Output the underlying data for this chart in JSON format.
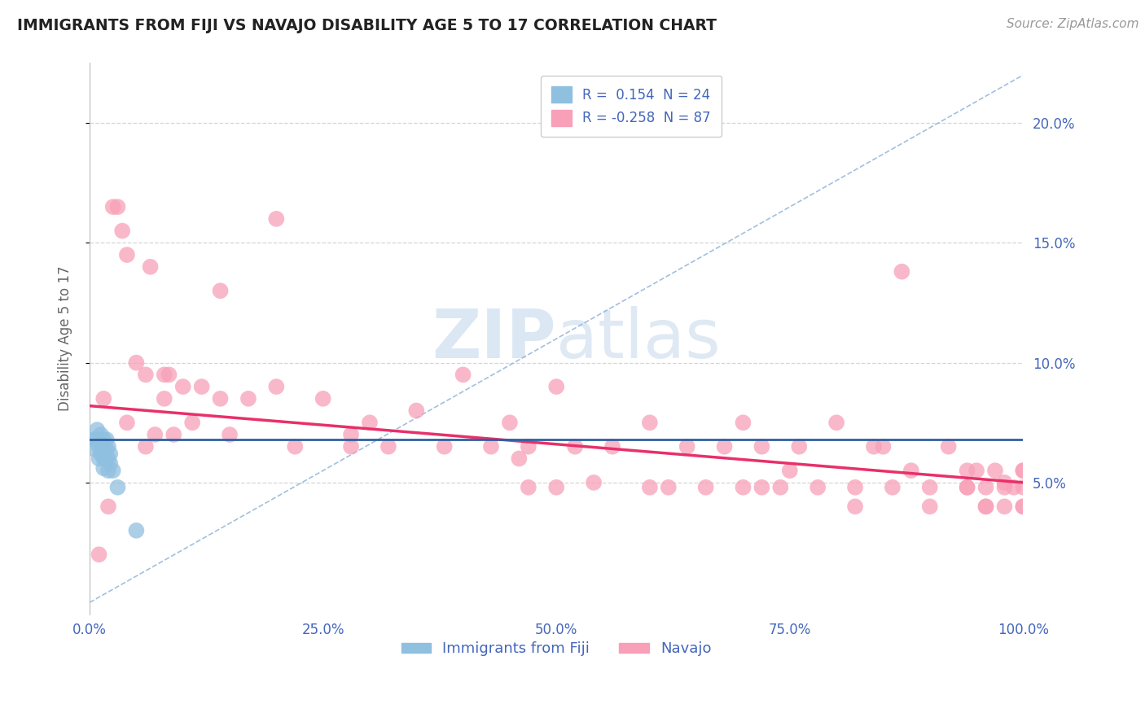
{
  "title": "IMMIGRANTS FROM FIJI VS NAVAJO DISABILITY AGE 5 TO 17 CORRELATION CHART",
  "source": "Source: ZipAtlas.com",
  "ylabel": "Disability Age 5 to 17",
  "xlim": [
    0.0,
    1.0
  ],
  "ylim": [
    -0.005,
    0.225
  ],
  "yticks": [
    0.05,
    0.1,
    0.15,
    0.2
  ],
  "ytick_labels": [
    "5.0%",
    "10.0%",
    "15.0%",
    "20.0%"
  ],
  "xticks": [
    0.0,
    0.25,
    0.5,
    0.75,
    1.0
  ],
  "xtick_labels": [
    "0.0%",
    "25.0%",
    "50.0%",
    "75.0%",
    "100.0%"
  ],
  "fiji_R": 0.154,
  "fiji_N": 24,
  "navajo_R": -0.258,
  "navajo_N": 87,
  "fiji_scatter_color": "#90c0e0",
  "navajo_scatter_color": "#f8a0b8",
  "fiji_trend_color": "#3060a0",
  "navajo_trend_color": "#e8306a",
  "diag_line_color": "#8ab0d8",
  "background_color": "#ffffff",
  "grid_color": "#cccccc",
  "title_color": "#222222",
  "axis_label_color": "#666666",
  "tick_label_color": "#4466bb",
  "navajo_trend_start_y": 0.082,
  "navajo_trend_end_y": 0.05,
  "fiji_trend_start_y": 0.068,
  "fiji_trend_end_y": 0.068,
  "fiji_points_x": [
    0.005,
    0.005,
    0.008,
    0.008,
    0.01,
    0.01,
    0.012,
    0.012,
    0.012,
    0.015,
    0.015,
    0.015,
    0.015,
    0.018,
    0.018,
    0.018,
    0.02,
    0.02,
    0.02,
    0.022,
    0.022,
    0.025,
    0.03,
    0.05
  ],
  "fiji_points_y": [
    0.068,
    0.064,
    0.072,
    0.068,
    0.065,
    0.06,
    0.07,
    0.066,
    0.062,
    0.068,
    0.064,
    0.06,
    0.056,
    0.068,
    0.064,
    0.06,
    0.065,
    0.06,
    0.055,
    0.062,
    0.058,
    0.055,
    0.048,
    0.03
  ],
  "navajo_points_x": [
    0.01,
    0.015,
    0.02,
    0.025,
    0.03,
    0.035,
    0.04,
    0.05,
    0.06,
    0.065,
    0.07,
    0.08,
    0.085,
    0.09,
    0.1,
    0.11,
    0.12,
    0.14,
    0.15,
    0.17,
    0.2,
    0.22,
    0.25,
    0.28,
    0.3,
    0.32,
    0.35,
    0.38,
    0.4,
    0.43,
    0.45,
    0.47,
    0.5,
    0.5,
    0.52,
    0.54,
    0.56,
    0.6,
    0.62,
    0.64,
    0.66,
    0.68,
    0.7,
    0.7,
    0.72,
    0.74,
    0.76,
    0.78,
    0.8,
    0.82,
    0.84,
    0.86,
    0.87,
    0.88,
    0.9,
    0.92,
    0.94,
    0.95,
    0.96,
    0.97,
    0.98,
    0.99,
    1.0,
    1.0,
    1.0,
    1.0,
    0.04,
    0.06,
    0.08,
    0.14,
    0.2,
    0.28,
    0.47,
    0.72,
    0.85,
    0.9,
    0.94,
    0.96,
    0.98,
    0.46,
    0.6,
    0.75,
    0.82,
    0.94,
    0.96,
    0.98,
    1.0
  ],
  "navajo_points_y": [
    0.02,
    0.085,
    0.04,
    0.165,
    0.165,
    0.155,
    0.145,
    0.1,
    0.095,
    0.14,
    0.07,
    0.085,
    0.095,
    0.07,
    0.09,
    0.075,
    0.09,
    0.085,
    0.07,
    0.085,
    0.09,
    0.065,
    0.085,
    0.065,
    0.075,
    0.065,
    0.08,
    0.065,
    0.095,
    0.065,
    0.075,
    0.065,
    0.09,
    0.048,
    0.065,
    0.05,
    0.065,
    0.075,
    0.048,
    0.065,
    0.048,
    0.065,
    0.075,
    0.048,
    0.065,
    0.048,
    0.065,
    0.048,
    0.075,
    0.048,
    0.065,
    0.048,
    0.138,
    0.055,
    0.048,
    0.065,
    0.048,
    0.055,
    0.048,
    0.055,
    0.04,
    0.048,
    0.055,
    0.04,
    0.048,
    0.04,
    0.075,
    0.065,
    0.095,
    0.13,
    0.16,
    0.07,
    0.048,
    0.048,
    0.065,
    0.04,
    0.055,
    0.04,
    0.048,
    0.06,
    0.048,
    0.055,
    0.04,
    0.048,
    0.04,
    0.05,
    0.055
  ]
}
